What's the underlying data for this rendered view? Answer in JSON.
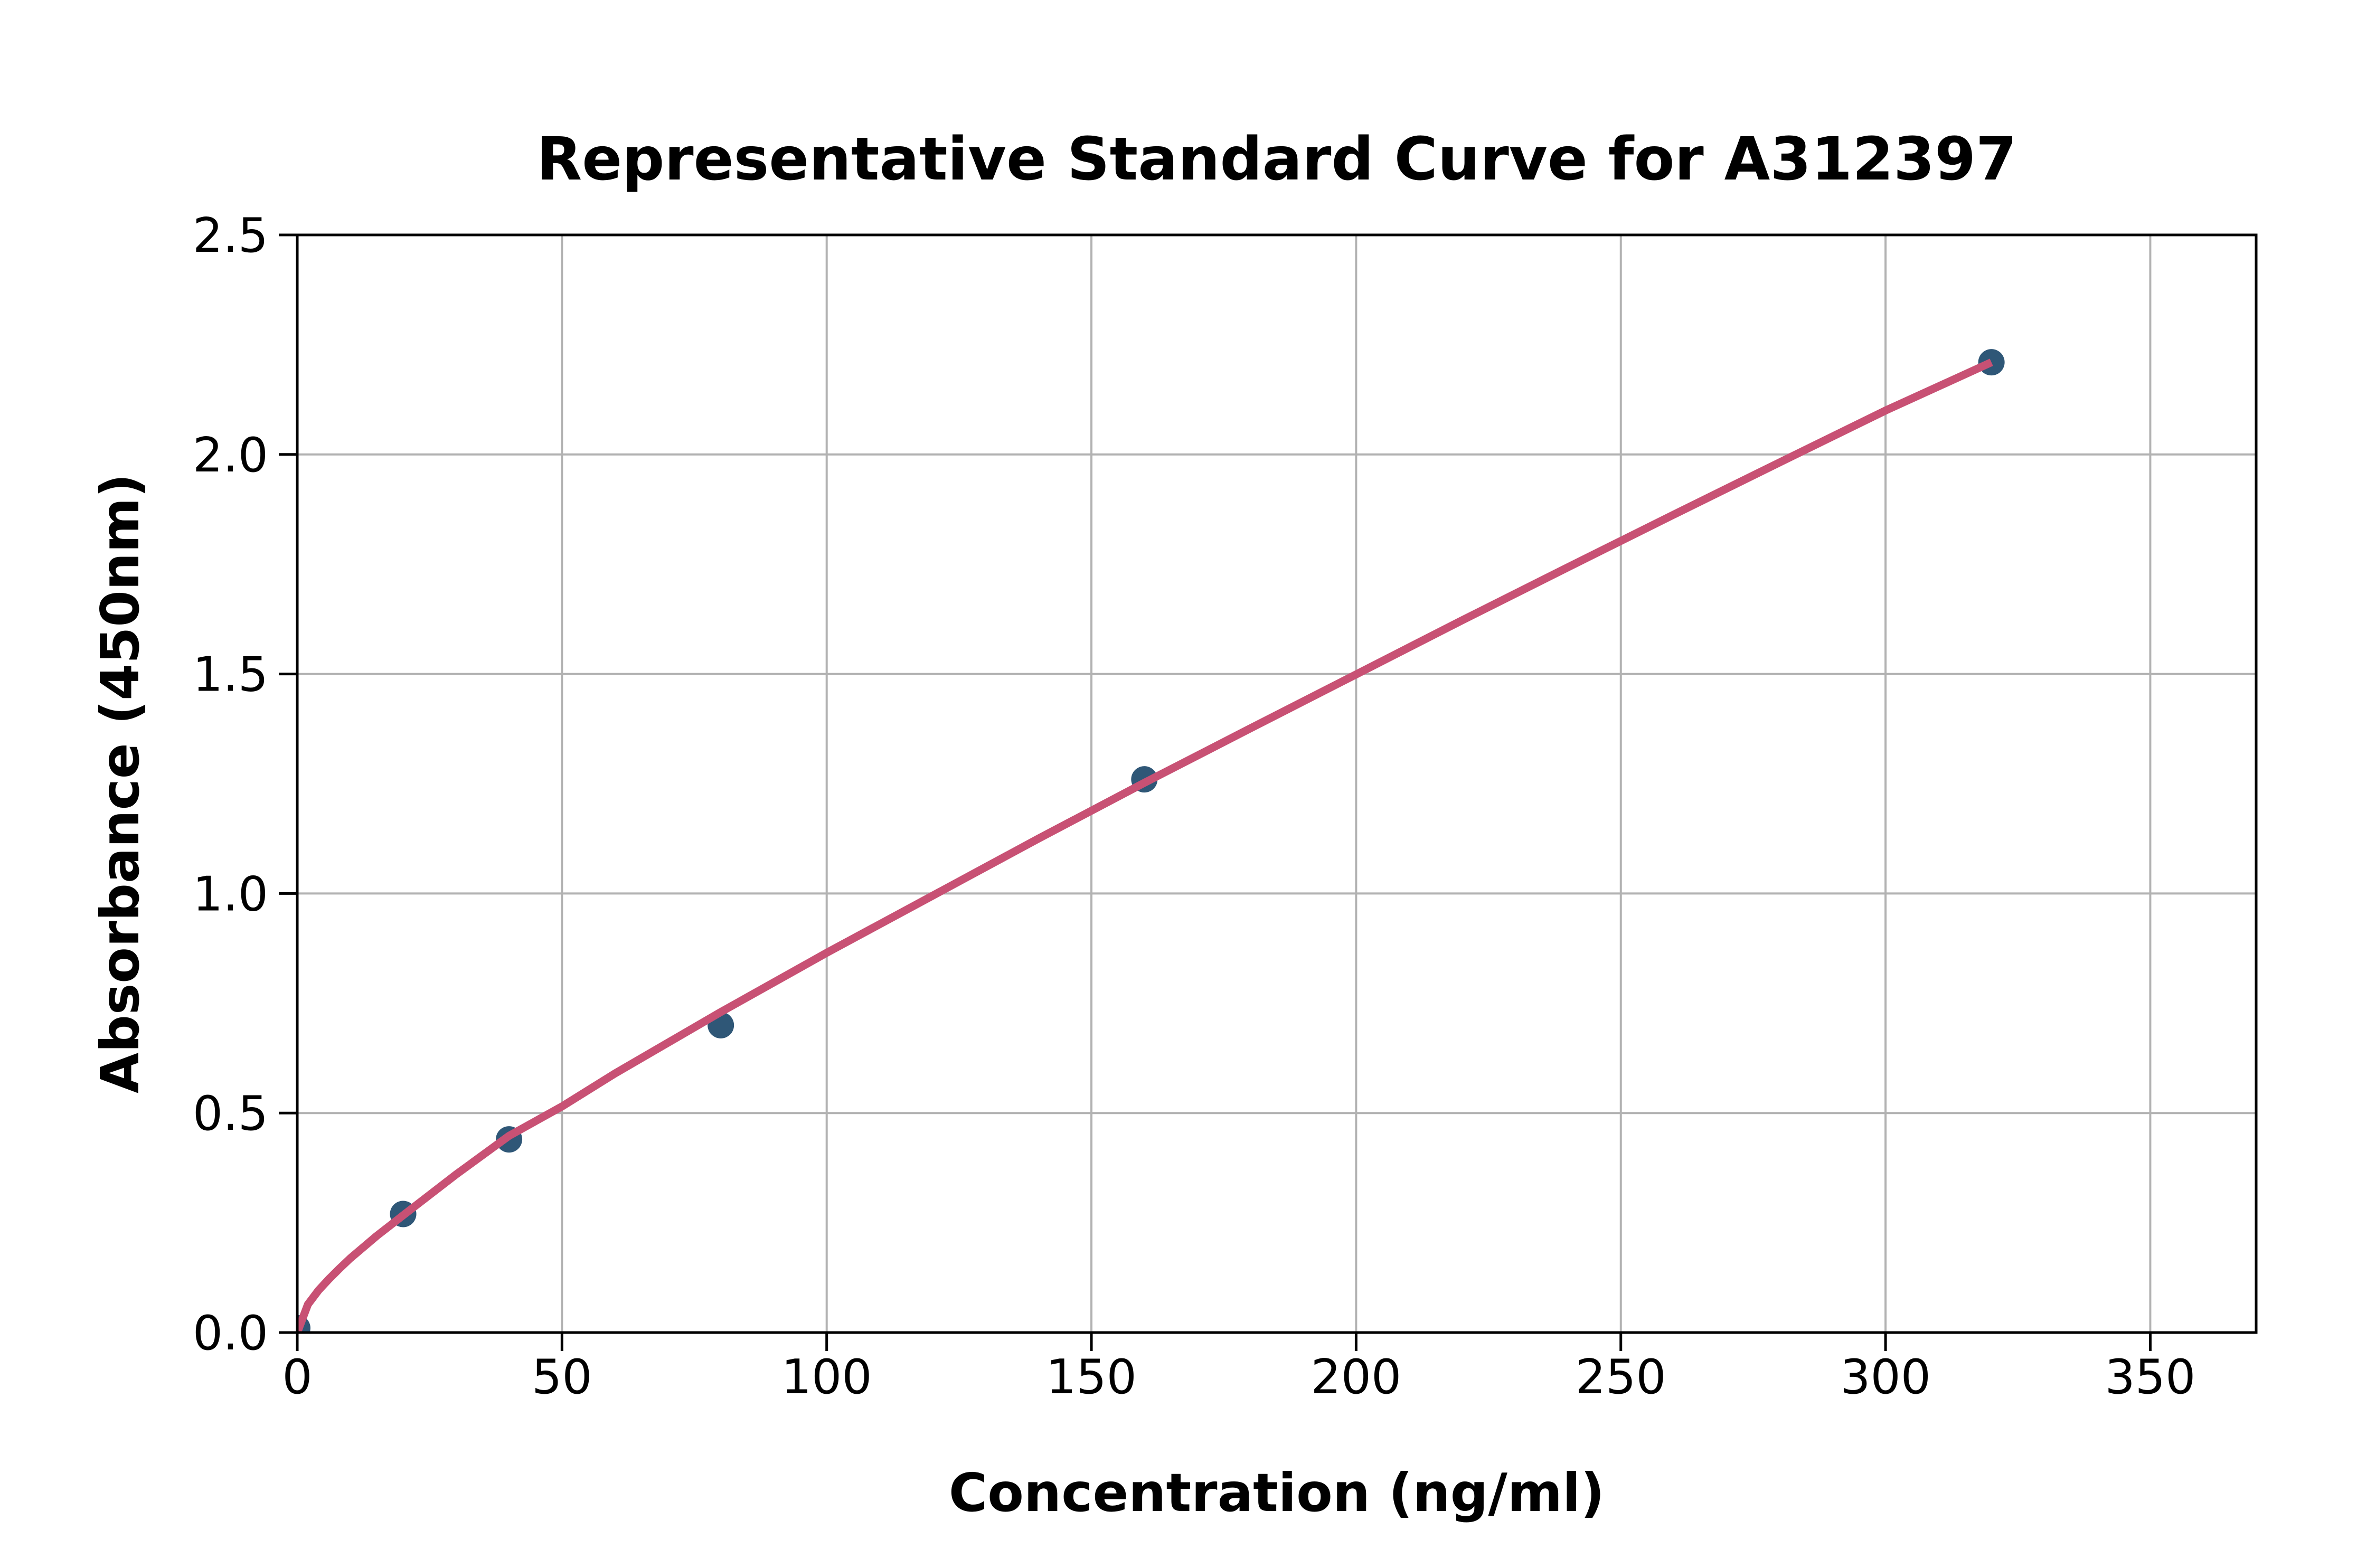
{
  "figure": {
    "title": "Representative Standard Curve for A312397",
    "background_color": "#ffffff"
  },
  "chart_data": {
    "type": "scatter",
    "title": "Representative Standard Curve for A312397",
    "xlabel": "Concentration (ng/ml)",
    "ylabel": "Absorbance (450nm)",
    "xlim": [
      0,
      370
    ],
    "ylim": [
      0,
      2.5
    ],
    "xticks": [
      0,
      50,
      100,
      150,
      200,
      250,
      300,
      350
    ],
    "ytick_labels": [
      "0.0",
      "0.5",
      "1.0",
      "1.5",
      "2.0",
      "2.5"
    ],
    "ytick_values": [
      0,
      0.5,
      1.0,
      1.5,
      2.0,
      2.5
    ],
    "grid": true,
    "legend": "none",
    "points": [
      {
        "x": 0,
        "y": 0.01
      },
      {
        "x": 20,
        "y": 0.27
      },
      {
        "x": 40,
        "y": 0.44
      },
      {
        "x": 80,
        "y": 0.7
      },
      {
        "x": 160,
        "y": 1.26
      },
      {
        "x": 320,
        "y": 2.21
      }
    ],
    "fit_curve": {
      "x": [
        0,
        2,
        4,
        6,
        8,
        10,
        15,
        20,
        30,
        40,
        50,
        60,
        80,
        100,
        120,
        140,
        160,
        180,
        200,
        220,
        240,
        260,
        280,
        300,
        320
      ],
      "y": [
        0.0,
        0.064,
        0.096,
        0.122,
        0.146,
        0.169,
        0.22,
        0.267,
        0.36,
        0.448,
        0.515,
        0.59,
        0.73,
        0.865,
        0.995,
        1.125,
        1.252,
        1.376,
        1.499,
        1.622,
        1.743,
        1.863,
        1.982,
        2.1,
        2.21
      ]
    },
    "colors": {
      "marker": "#2f5777",
      "curve": "#c85174",
      "grid": "#b2b2b2",
      "axis": "#000000",
      "text": "#000000"
    },
    "marker_radius": 25,
    "curve_width": 15
  }
}
